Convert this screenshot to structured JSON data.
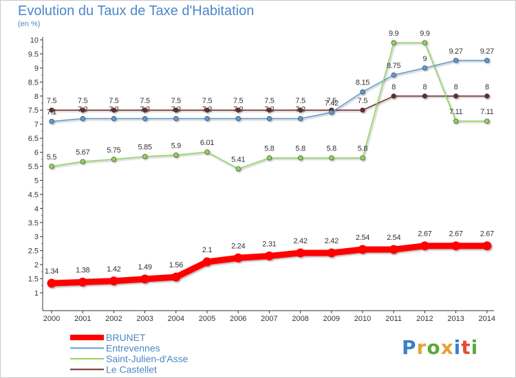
{
  "header": {
    "title": "Evolution du Taux de Taxe d'Habitation",
    "subtitle": "(en %)"
  },
  "logo": {
    "letters": [
      "P",
      "r",
      "o",
      "x",
      "i",
      "t",
      "i"
    ],
    "colors": [
      "#3d7fcb",
      "#e8a03a",
      "#5aaa3c",
      "#e8a03a",
      "#3d7fcb",
      "#e84a3a",
      "#5aaa3c"
    ]
  },
  "chart_data": {
    "type": "line",
    "title": "Evolution du Taux de Taxe d'Habitation",
    "subtitle": "(en %)",
    "xlabel": "",
    "ylabel": "",
    "x": [
      "2000",
      "2001",
      "2002",
      "2003",
      "2004",
      "2005",
      "2006",
      "2007",
      "2008",
      "2009",
      "2010",
      "2011",
      "2012",
      "2013",
      "2014"
    ],
    "ylim": [
      1,
      10
    ],
    "yticks": [
      "1",
      "1.5",
      "2",
      "2.5",
      "3",
      "3.5",
      "4",
      "4.5",
      "5",
      "5.5",
      "6",
      "6.5",
      "7",
      "7.5",
      "8",
      "8.5",
      "9",
      "9.5",
      "10"
    ],
    "grid": false,
    "legend": "bottom-left",
    "series": [
      {
        "name": "Le Castellet",
        "color": "#6e2a2a",
        "values": [
          7.5,
          7.5,
          7.5,
          7.5,
          7.5,
          7.5,
          7.5,
          7.5,
          7.5,
          7.5,
          7.5,
          8,
          8,
          8,
          8
        ],
        "labels": [
          "7.5",
          "7.5",
          "7.5",
          "7.5",
          "7.5",
          "7.5",
          "7.5",
          "7.5",
          "7.5",
          "7.5",
          "7.5",
          "8",
          "8",
          "8",
          "8"
        ]
      },
      {
        "name": "Entrevennes",
        "color": "#5b9bd5",
        "values": [
          7.1,
          7.2,
          7.2,
          7.2,
          7.2,
          7.2,
          7.2,
          7.2,
          7.2,
          7.42,
          8.15,
          8.75,
          9,
          9.27,
          9.27
        ],
        "labels": [
          "7.1",
          "7.2",
          "7.2",
          "7.2",
          "7.2",
          "7.2",
          "7.2",
          "7.2",
          "7.2",
          "7.42",
          "8.15",
          "8.75",
          "9",
          "9.27",
          "9.27"
        ]
      },
      {
        "name": "Saint-Julien-d'Asse",
        "color": "#8fd65a",
        "values": [
          5.5,
          5.67,
          5.75,
          5.85,
          5.9,
          6.01,
          5.41,
          5.8,
          5.8,
          5.8,
          5.8,
          9.9,
          9.9,
          7.11,
          7.11
        ],
        "labels": [
          "5.5",
          "5.67",
          "5.75",
          "5.85",
          "5.9",
          "6.01",
          "5.41",
          "5.8",
          "5.8",
          "5.8",
          "5.8",
          "9.9",
          "9.9",
          "7.11",
          "7.11"
        ]
      },
      {
        "name": "BRUNET",
        "color": "#ff0000",
        "values": [
          1.34,
          1.38,
          1.42,
          1.49,
          1.56,
          2.1,
          2.24,
          2.31,
          2.42,
          2.42,
          2.54,
          2.54,
          2.67,
          2.67,
          2.67
        ],
        "labels": [
          "1.34",
          "1.38",
          "1.42",
          "1.49",
          "1.56",
          "2.1",
          "2.24",
          "2.31",
          "2.42",
          "2.42",
          "2.54",
          "2.54",
          "2.67",
          "2.67",
          "2.67"
        ]
      }
    ],
    "legend_order": [
      "BRUNET",
      "Entrevennes",
      "Saint-Julien-d'Asse",
      "Le Castellet"
    ]
  }
}
